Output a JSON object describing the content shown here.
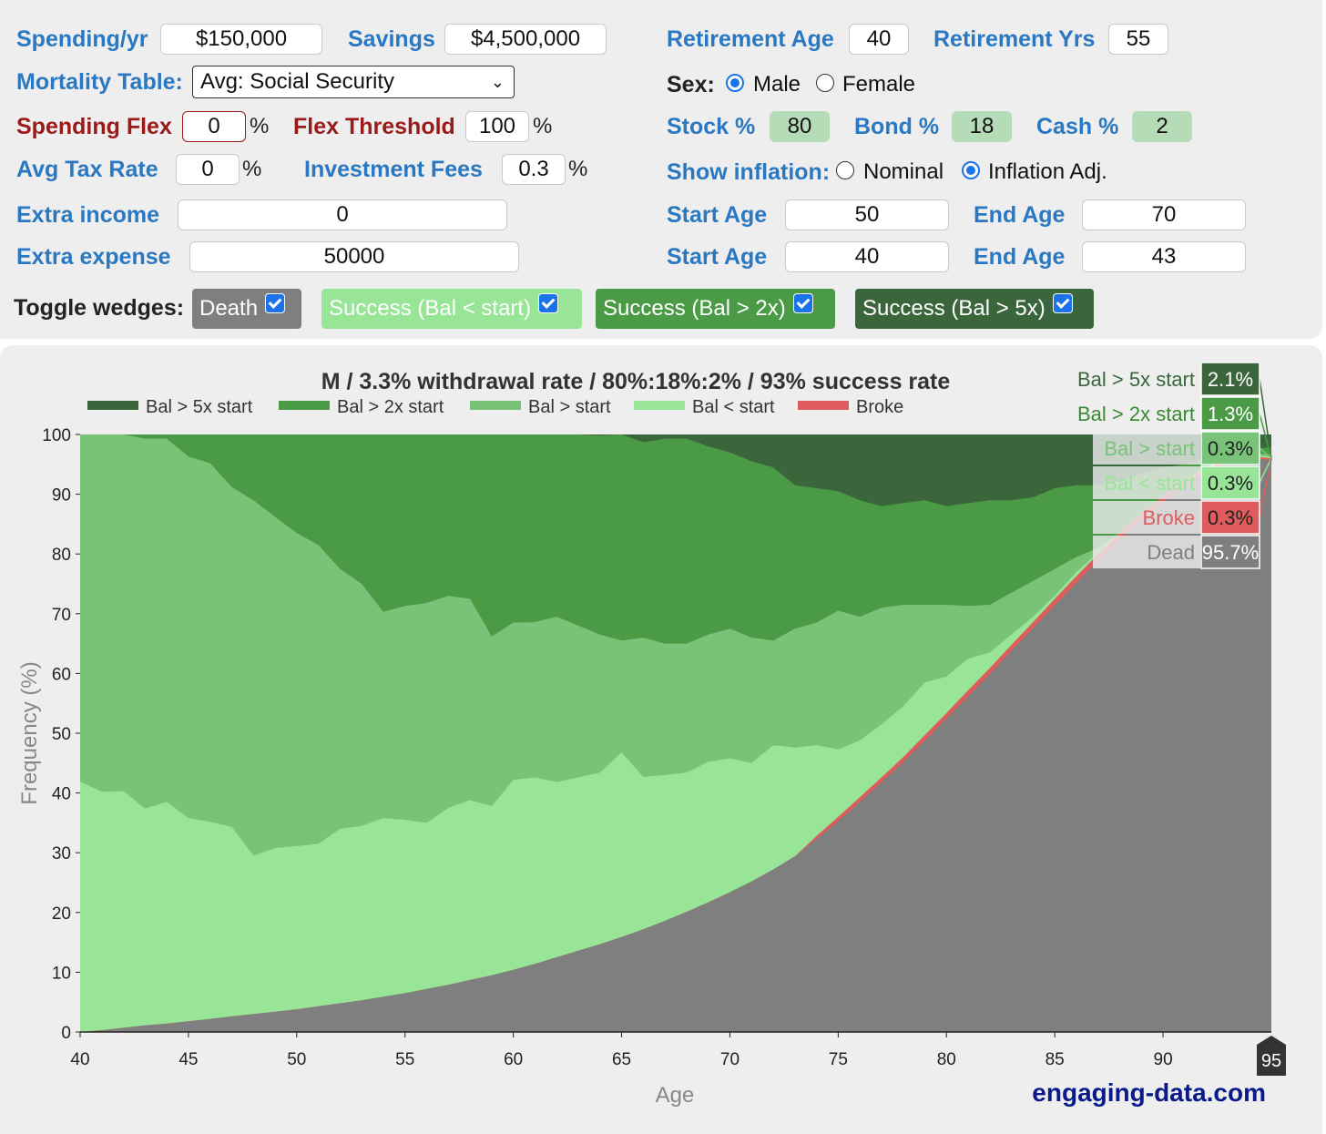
{
  "inputs": {
    "spending_label": "Spending/yr",
    "spending_value": "$150,000",
    "savings_label": "Savings",
    "savings_value": "$4,500,000",
    "retirement_age_label": "Retirement Age",
    "retirement_age_value": "40",
    "retirement_yrs_label": "Retirement Yrs",
    "retirement_yrs_value": "55",
    "mortality_label": "Mortality Table:",
    "mortality_value": "Avg: Social Security",
    "sex_label": "Sex:",
    "sex_male": "Male",
    "sex_female": "Female",
    "flex_label": "Spending Flex",
    "flex_value": "0",
    "threshold_label": "Flex Threshold",
    "threshold_value": "100",
    "stock_label": "Stock %",
    "stock_value": "80",
    "bond_label": "Bond %",
    "bond_value": "18",
    "cash_label": "Cash %",
    "cash_value": "2",
    "tax_label": "Avg Tax Rate",
    "tax_value": "0",
    "fees_label": "Investment Fees",
    "fees_value": "0.3",
    "inflation_label": "Show inflation:",
    "inflation_nominal": "Nominal",
    "inflation_adj": "Inflation Adj.",
    "extra_income_label": "Extra income",
    "extra_income_value": "0",
    "extra_expense_label": "Extra expense",
    "extra_expense_value": "50000",
    "start_age_label": "Start Age",
    "end_age_label": "End Age",
    "income_start": "50",
    "income_end": "70",
    "expense_start": "40",
    "expense_end": "43",
    "percent_sign": "%"
  },
  "toggles": {
    "label": "Toggle wedges:",
    "death": "Death",
    "below": "Success (Bal < start)",
    "above2x": "Success (Bal > 2x)",
    "above5x": "Success (Bal > 5x)"
  },
  "colors": {
    "accent": "#2a78c1",
    "flex": "#9a1a1a",
    "dead": "#7f7f7f",
    "broke": "#e05c5c",
    "below": "#98e598",
    "above": "#78c378",
    "above2x": "#4b9a46",
    "above5x": "#3b663c"
  },
  "chart_data": {
    "type": "area",
    "title": "M / 3.3% withdrawal rate / 80%:18%:2% / 93% success rate",
    "xlabel": "Age",
    "ylabel": "Frequency (%)",
    "xlim": [
      40,
      95
    ],
    "ylim": [
      0,
      100
    ],
    "x_ticks": [
      40,
      45,
      50,
      55,
      60,
      65,
      70,
      75,
      80,
      85,
      90
    ],
    "y_ticks": [
      0,
      10,
      20,
      30,
      40,
      50,
      60,
      70,
      80,
      90,
      100
    ],
    "end_age_marker": "95",
    "legend": [
      "Bal > 5x start",
      "Bal > 2x start",
      "Bal > start",
      "Bal < start",
      "Broke"
    ],
    "x": [
      40,
      41,
      42,
      43,
      44,
      45,
      46,
      47,
      48,
      49,
      50,
      51,
      52,
      53,
      54,
      55,
      56,
      57,
      58,
      59,
      60,
      61,
      62,
      63,
      64,
      65,
      66,
      67,
      68,
      69,
      70,
      71,
      72,
      73,
      74,
      75,
      76,
      77,
      78,
      79,
      80,
      81,
      82,
      83,
      84,
      85,
      86,
      87,
      88,
      89,
      90,
      91,
      92,
      93,
      94,
      95
    ],
    "series": [
      {
        "name": "Dead",
        "cumulative": [
          0,
          0.3,
          0.7,
          1.1,
          1.4,
          1.8,
          2.2,
          2.6,
          3,
          3.4,
          3.8,
          4.3,
          4.8,
          5.3,
          5.9,
          6.5,
          7.2,
          7.9,
          8.7,
          9.5,
          10.4,
          11.4,
          12.5,
          13.6,
          14.7,
          15.9,
          17.2,
          18.6,
          20.1,
          21.7,
          23.4,
          25.2,
          27.2,
          29.4,
          32.3,
          35.3,
          38.5,
          41.8,
          45.2,
          48.8,
          52.5,
          56.2,
          59.9,
          63.8,
          67.6,
          71.4,
          75.2,
          78.9,
          82.5,
          85.8,
          88.8,
          91.5,
          93.7,
          95.3,
          96.1,
          95.7
        ]
      },
      {
        "name": "Broke",
        "cumulative": [
          0,
          0.3,
          0.7,
          1.1,
          1.4,
          1.8,
          2.2,
          2.6,
          3,
          3.4,
          3.8,
          4.3,
          4.8,
          5.3,
          5.9,
          6.5,
          7.2,
          7.9,
          8.7,
          9.5,
          10.4,
          11.4,
          12.5,
          13.6,
          14.7,
          15.9,
          17.2,
          18.6,
          20.1,
          21.7,
          23.4,
          25.2,
          27.2,
          29.4,
          32.8,
          36,
          39.3,
          42.6,
          46,
          49.7,
          53.4,
          57.2,
          60.9,
          64.8,
          68.6,
          72.5,
          76.3,
          80,
          83.5,
          86.7,
          89.6,
          92.2,
          94.3,
          95.8,
          96.4,
          96
        ]
      },
      {
        "name": "Bal < start",
        "cumulative": [
          41.9,
          40.2,
          40.3,
          37.4,
          38.5,
          35.8,
          35.2,
          34.3,
          29.5,
          30.8,
          31.1,
          31.5,
          34,
          34.5,
          35.8,
          35.5,
          35,
          37.5,
          38.8,
          37.8,
          42.2,
          42.6,
          41.8,
          42.6,
          43.4,
          46.8,
          42.7,
          43,
          43.4,
          45.2,
          45.8,
          45,
          48,
          47.6,
          48,
          47.3,
          48.8,
          51.5,
          54.5,
          58.5,
          59.5,
          62.5,
          63.5,
          66.5,
          69.5,
          73,
          77,
          80.2,
          83.5,
          86.8,
          89.6,
          92.3,
          94.5,
          95.9,
          96.6,
          96.3
        ]
      },
      {
        "name": "Bal > start",
        "cumulative": [
          100,
          100,
          100,
          99.3,
          99.3,
          96.3,
          95.2,
          91.2,
          89,
          86.2,
          83.5,
          81.5,
          77.5,
          75,
          70.3,
          71.3,
          71.8,
          73,
          72.5,
          66.2,
          68.5,
          68.6,
          69.5,
          68,
          66.5,
          65.5,
          66,
          65,
          65,
          66.5,
          67.5,
          66,
          65.5,
          67.5,
          68.5,
          70.5,
          69.5,
          71,
          71.5,
          71.5,
          71.5,
          71.3,
          71.5,
          73.5,
          75.5,
          77.5,
          79.5,
          81,
          83.5,
          86.5,
          89.5,
          92,
          94.5,
          96.5,
          97,
          96.6
        ]
      },
      {
        "name": "Bal > 2x start",
        "cumulative": [
          100,
          100,
          100,
          100,
          100,
          100,
          100,
          100,
          100,
          100,
          100,
          100,
          100,
          100,
          100,
          100,
          100,
          100,
          100,
          100,
          100,
          100,
          100,
          100,
          99.8,
          100,
          98.7,
          99.3,
          99.3,
          98,
          97,
          95.5,
          94.5,
          91.5,
          91,
          90.5,
          89,
          88,
          88.5,
          89,
          88,
          88.5,
          89,
          89,
          89.5,
          91,
          91.5,
          91.5,
          92.3,
          93.5,
          94.5,
          95,
          96,
          97,
          97.5,
          97.9
        ]
      },
      {
        "name": "Bal > 5x start",
        "cumulative": [
          100,
          100,
          100,
          100,
          100,
          100,
          100,
          100,
          100,
          100,
          100,
          100,
          100,
          100,
          100,
          100,
          100,
          100,
          100,
          100,
          100,
          100,
          100,
          100,
          100,
          100,
          100,
          100,
          100,
          100,
          100,
          100,
          100,
          100,
          100,
          100,
          100,
          100,
          100,
          100,
          100,
          100,
          100,
          100,
          100,
          100,
          100,
          100,
          100,
          100,
          100,
          100,
          100,
          100,
          100,
          100
        ]
      }
    ],
    "end_labels": [
      {
        "name": "Bal > 5x start",
        "value": "2.1%"
      },
      {
        "name": "Bal > 2x start",
        "value": "1.3%"
      },
      {
        "name": "Bal > start",
        "value": "0.3%"
      },
      {
        "name": "Bal < start",
        "value": "0.3%"
      },
      {
        "name": "Broke",
        "value": "0.3%"
      },
      {
        "name": "Dead",
        "value": "95.7%"
      }
    ],
    "watermark": "engaging-data.com"
  }
}
